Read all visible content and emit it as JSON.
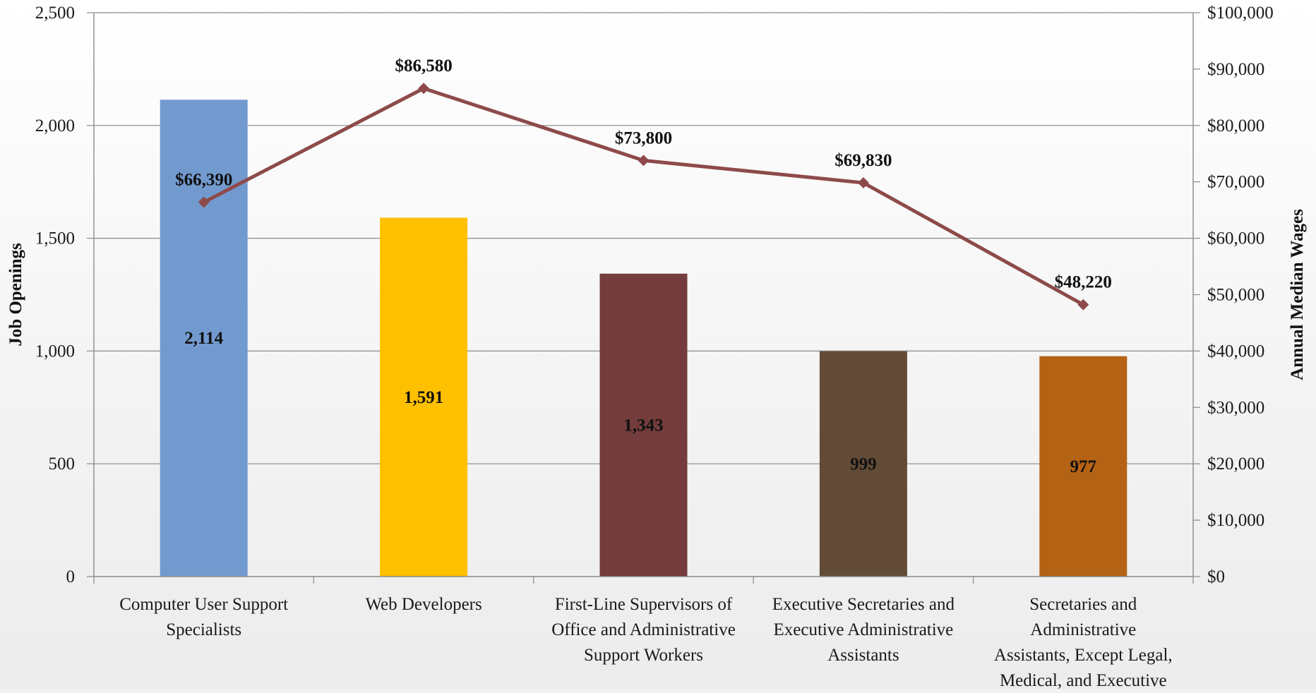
{
  "chart_data": {
    "type": "bar",
    "categories": [
      [
        "Computer User Support",
        "Specialists"
      ],
      [
        "Web Developers"
      ],
      [
        "First-Line Supervisors of",
        "Office and Administrative",
        "Support Workers"
      ],
      [
        "Executive Secretaries and",
        "Executive Administrative",
        "Assistants"
      ],
      [
        "Secretaries and",
        "Administrative",
        "Assistants, Except Legal,",
        "Medical, and Executive"
      ]
    ],
    "series": [
      {
        "type": "bar",
        "axis": "left",
        "values": [
          2114,
          1591,
          1343,
          999,
          977
        ],
        "labels": [
          "2,114",
          "1,591",
          "1,343",
          "999",
          "977"
        ],
        "colors": [
          "#729acf",
          "#ffc000",
          "#743c3c",
          "#624c37",
          "#b46214"
        ]
      },
      {
        "type": "line",
        "axis": "right",
        "values": [
          66390,
          86580,
          73800,
          69830,
          48220
        ],
        "labels": [
          "$66,390",
          "$86,580",
          "$73,800",
          "$69,830",
          "$48,220"
        ],
        "color": "#8e4a4a"
      }
    ],
    "ylabel": "Job Openings",
    "y2label": "Annual Median Wages",
    "ylim": [
      0,
      2500
    ],
    "y2lim": [
      0,
      100000
    ],
    "yticks": [
      0,
      500,
      1000,
      1500,
      2000,
      2500
    ],
    "ytick_labels": [
      "0",
      "500",
      "1,000",
      "1,500",
      "2,000",
      "2,500"
    ],
    "y2ticks": [
      0,
      10000,
      20000,
      30000,
      40000,
      50000,
      60000,
      70000,
      80000,
      90000,
      100000
    ],
    "y2tick_labels": [
      "$0",
      "$10,000",
      "$20,000",
      "$30,000",
      "$40,000",
      "$50,000",
      "$60,000",
      "$70,000",
      "$80,000",
      "$90,000",
      "$100,000"
    ],
    "grid": true,
    "legend": "none"
  }
}
